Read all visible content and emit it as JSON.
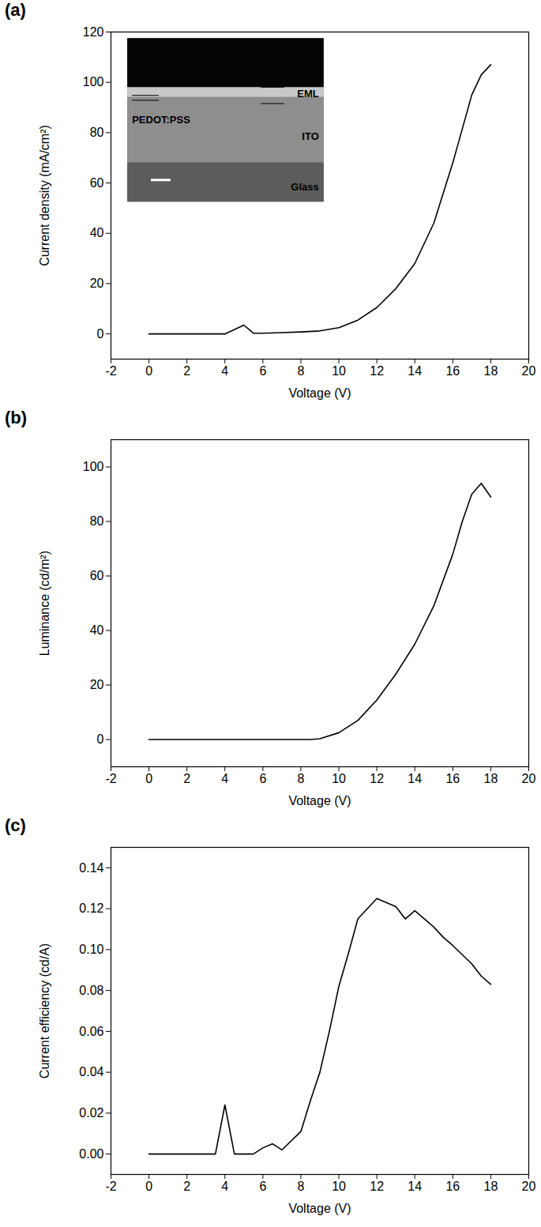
{
  "chart_data": [
    {
      "type": "line",
      "title": "(a)",
      "x_label": "Voltage (V)",
      "y_label": "Current density (mA/cm²)",
      "x": [
        0,
        4,
        5,
        5.5,
        6,
        7,
        8,
        9,
        10,
        11,
        12,
        13,
        14,
        15,
        16,
        17,
        17.5,
        18
      ],
      "values": [
        0,
        0,
        3.5,
        0.3,
        0.3,
        0.5,
        0.8,
        1.2,
        2.5,
        5.5,
        10.5,
        18,
        28,
        44,
        68,
        95,
        103,
        107
      ],
      "color": "#000000",
      "grid": false,
      "xlim": [
        -2,
        20
      ],
      "xticks": [
        -2,
        0,
        2,
        4,
        6,
        8,
        10,
        12,
        14,
        16,
        18,
        20
      ],
      "ylim": [
        -10,
        120
      ],
      "yticks": [
        0,
        20,
        40,
        60,
        80,
        100,
        120
      ],
      "annotations": [
        "PEDOT:PSS",
        "EML",
        "ITO",
        "Glass"
      ]
    },
    {
      "type": "line",
      "title": "(b)",
      "x_label": "Voltage (V)",
      "y_label": "Luminance (cd/m²)",
      "x": [
        0,
        8.5,
        9,
        10,
        11,
        12,
        13,
        14,
        15,
        16,
        16.5,
        17,
        17.5,
        18
      ],
      "values": [
        0,
        0,
        0.3,
        2.5,
        7,
        14.5,
        24,
        35,
        49,
        68,
        80,
        90,
        94,
        89
      ],
      "color": "#000000",
      "grid": false,
      "xlim": [
        -2,
        20
      ],
      "xticks": [
        -2,
        0,
        2,
        4,
        6,
        8,
        10,
        12,
        14,
        16,
        18,
        20
      ],
      "ylim": [
        -10,
        110
      ],
      "yticks": [
        0,
        20,
        40,
        60,
        80,
        100
      ]
    },
    {
      "type": "line",
      "title": "(c)",
      "x_label": "Voltage (V)",
      "y_label": "Current efficiency (cd/A)",
      "x": [
        0,
        3.5,
        4,
        4.5,
        5.5,
        6,
        6.5,
        7,
        8,
        8.5,
        9,
        9.5,
        10,
        10.5,
        11,
        12,
        13,
        13.5,
        14,
        15,
        15.5,
        16,
        17,
        17.5,
        18
      ],
      "values": [
        0,
        0,
        0.024,
        0,
        0,
        0.003,
        0.005,
        0.002,
        0.011,
        0.026,
        0.04,
        0.06,
        0.082,
        0.098,
        0.115,
        0.125,
        0.121,
        0.115,
        0.119,
        0.111,
        0.106,
        0.102,
        0.093,
        0.087,
        0.083
      ],
      "color": "#000000",
      "grid": false,
      "xlim": [
        -2,
        20
      ],
      "xticks": [
        -2,
        0,
        2,
        4,
        6,
        8,
        10,
        12,
        14,
        16,
        18,
        20
      ],
      "ylim": [
        -0.01,
        0.15
      ],
      "yticks": [
        {
          "value": 0,
          "label": "0.00"
        },
        {
          "value": 0.02,
          "label": "0.02"
        },
        {
          "value": 0.04,
          "label": "0.04"
        },
        {
          "value": 0.06,
          "label": "0.06"
        },
        {
          "value": 0.08,
          "label": "0.08"
        },
        {
          "value": 0.1,
          "label": "0.10"
        },
        {
          "value": 0.12,
          "label": "0.12"
        },
        {
          "value": 0.14,
          "label": "0.14"
        }
      ]
    }
  ]
}
